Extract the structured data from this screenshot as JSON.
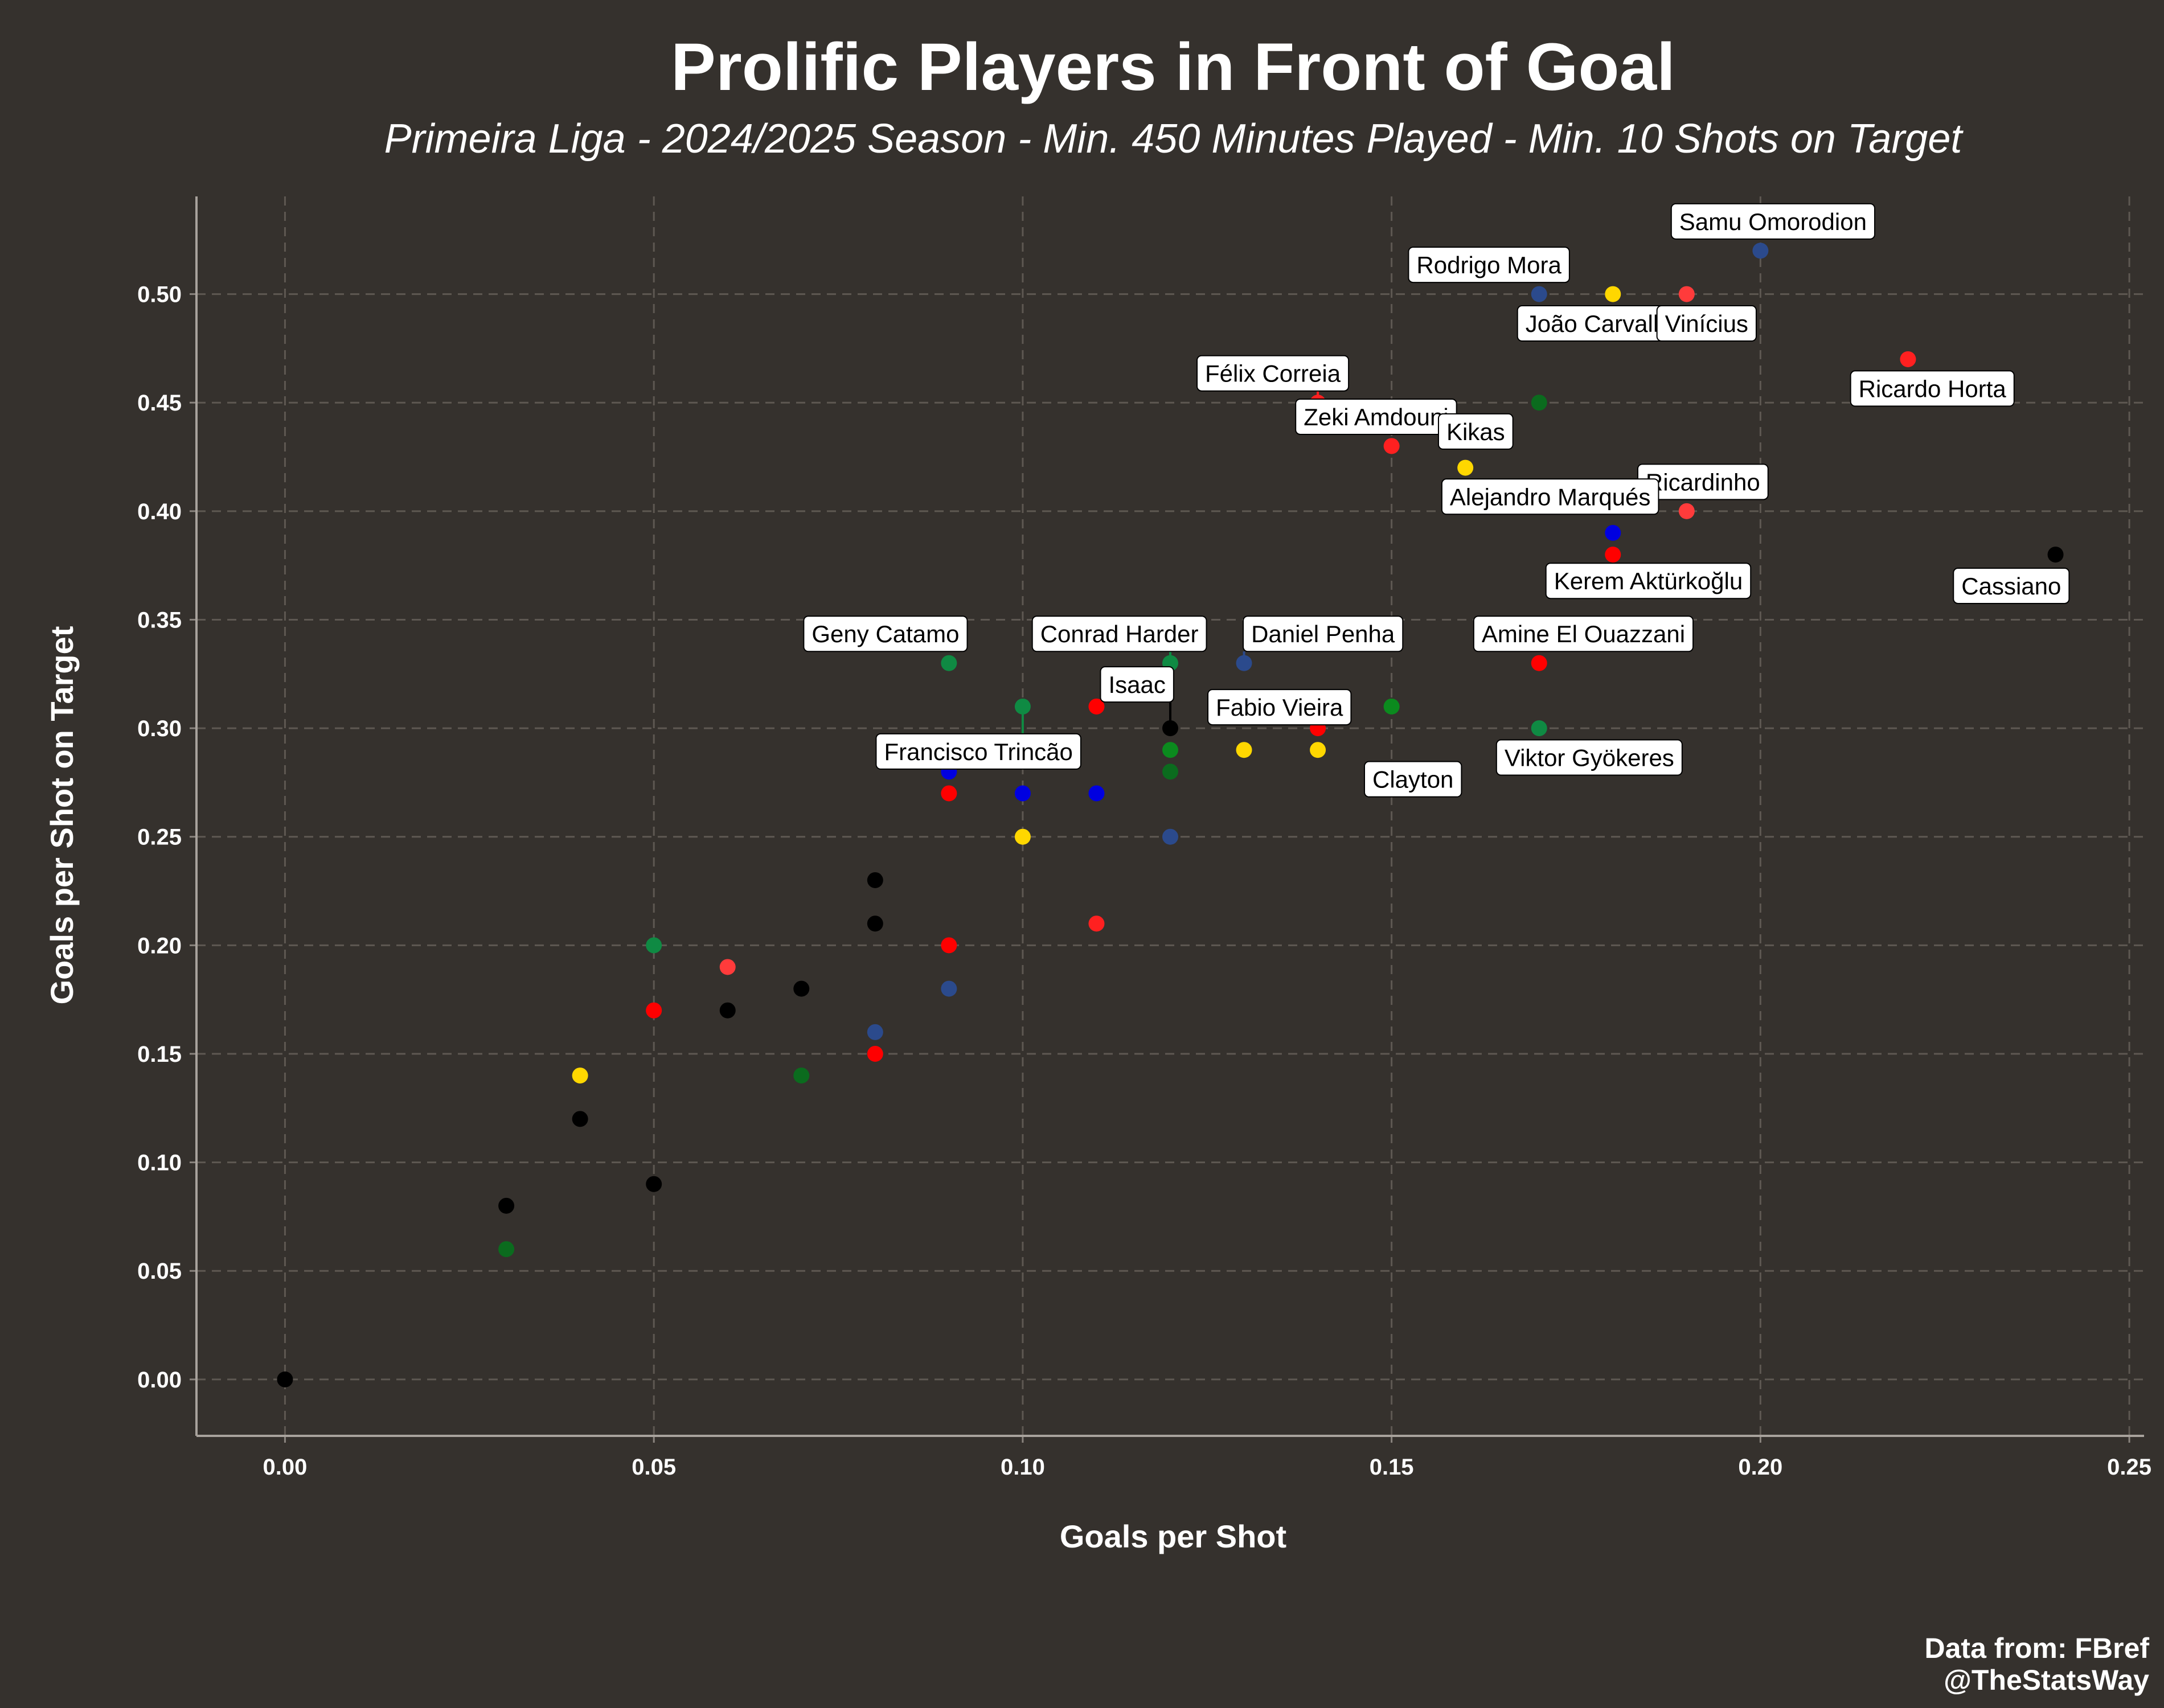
{
  "chart_data": {
    "type": "scatter",
    "title": "Prolific Players in Front of Goal",
    "subtitle": "Primeira Liga - 2024/2025 Season - Min. 450 Minutes Played - Min. 10 Shots on Target",
    "xlabel": "Goals per Shot",
    "ylabel": "Goals per Shot on Target",
    "xlim": [
      -0.012,
      0.252
    ],
    "ylim": [
      -0.026,
      0.545
    ],
    "xticks": [
      "0.00",
      "0.05",
      "0.10",
      "0.15",
      "0.20",
      "0.25"
    ],
    "yticks": [
      "0.00",
      "0.05",
      "0.10",
      "0.15",
      "0.20",
      "0.25",
      "0.30",
      "0.35",
      "0.40",
      "0.45",
      "0.50"
    ],
    "grid": true,
    "caption": [
      "Data from: FBref",
      "@TheStatsWay"
    ],
    "points": [
      {
        "x": 0.2,
        "y": 0.52,
        "color": "#2b4a8c",
        "label": "Samu Omorodion"
      },
      {
        "x": 0.17,
        "y": 0.5,
        "color": "#2b4a8c",
        "label": "Rodrigo Mora"
      },
      {
        "x": 0.18,
        "y": 0.5,
        "color": "#ffd700",
        "label": "João Carvalho"
      },
      {
        "x": 0.19,
        "y": 0.5,
        "color": "#ff3b3b",
        "label": "Vinícius"
      },
      {
        "x": 0.22,
        "y": 0.47,
        "color": "#ff2020",
        "label": "Ricardo Horta"
      },
      {
        "x": 0.14,
        "y": 0.45,
        "color": "#ff2020",
        "label": "Félix Correia"
      },
      {
        "x": 0.17,
        "y": 0.45,
        "color": "#0b6b1e",
        "label": ""
      },
      {
        "x": 0.15,
        "y": 0.43,
        "color": "#ff2020",
        "label": "Zeki Amdouni"
      },
      {
        "x": 0.16,
        "y": 0.42,
        "color": "#ffd700",
        "label": "Kikas"
      },
      {
        "x": 0.19,
        "y": 0.4,
        "color": "#ff3b3b",
        "label": "Ricardinho"
      },
      {
        "x": 0.18,
        "y": 0.39,
        "color": "#0000e0",
        "label": "Alejandro Marqués"
      },
      {
        "x": 0.18,
        "y": 0.38,
        "color": "#ff0000",
        "label": "Kerem Aktürkoğlu"
      },
      {
        "x": 0.24,
        "y": 0.38,
        "color": "#000000",
        "label": "Cassiano"
      },
      {
        "x": 0.09,
        "y": 0.33,
        "color": "#0f8a43",
        "label": "Geny Catamo"
      },
      {
        "x": 0.12,
        "y": 0.33,
        "color": "#0f8a43",
        "label": "Conrad Harder"
      },
      {
        "x": 0.13,
        "y": 0.33,
        "color": "#2b4a8c",
        "label": "Daniel Penha"
      },
      {
        "x": 0.17,
        "y": 0.33,
        "color": "#ff0000",
        "label": "Amine El Ouazzani"
      },
      {
        "x": 0.1,
        "y": 0.31,
        "color": "#0f8a43",
        "label": "Francisco Trincão"
      },
      {
        "x": 0.11,
        "y": 0.31,
        "color": "#ff0000",
        "label": ""
      },
      {
        "x": 0.14,
        "y": 0.31,
        "color": "#0b6b1e",
        "label": ""
      },
      {
        "x": 0.15,
        "y": 0.31,
        "color": "#0b8a1e",
        "label": ""
      },
      {
        "x": 0.12,
        "y": 0.3,
        "color": "#000000",
        "label": "Isaac"
      },
      {
        "x": 0.14,
        "y": 0.3,
        "color": "#ff0000",
        "label": "Fabio Vieira"
      },
      {
        "x": 0.17,
        "y": 0.3,
        "color": "#0f8a43",
        "label": "Viktor Gyökeres"
      },
      {
        "x": 0.12,
        "y": 0.29,
        "color": "#0b8a1e",
        "label": ""
      },
      {
        "x": 0.13,
        "y": 0.29,
        "color": "#ffd700",
        "label": ""
      },
      {
        "x": 0.14,
        "y": 0.29,
        "color": "#ffd700",
        "label": "Clayton"
      },
      {
        "x": 0.09,
        "y": 0.28,
        "color": "#0000e0",
        "label": ""
      },
      {
        "x": 0.12,
        "y": 0.28,
        "color": "#0b6b1e",
        "label": ""
      },
      {
        "x": 0.09,
        "y": 0.27,
        "color": "#ff0000",
        "label": ""
      },
      {
        "x": 0.1,
        "y": 0.27,
        "color": "#0000e0",
        "label": ""
      },
      {
        "x": 0.11,
        "y": 0.27,
        "color": "#0000e0",
        "label": ""
      },
      {
        "x": 0.1,
        "y": 0.25,
        "color": "#ffd700",
        "label": ""
      },
      {
        "x": 0.12,
        "y": 0.25,
        "color": "#2b4a8c",
        "label": ""
      },
      {
        "x": 0.08,
        "y": 0.23,
        "color": "#000000",
        "label": ""
      },
      {
        "x": 0.08,
        "y": 0.21,
        "color": "#000000",
        "label": ""
      },
      {
        "x": 0.11,
        "y": 0.21,
        "color": "#ff2020",
        "label": ""
      },
      {
        "x": 0.05,
        "y": 0.2,
        "color": "#0f8a43",
        "label": ""
      },
      {
        "x": 0.09,
        "y": 0.2,
        "color": "#ff0000",
        "label": ""
      },
      {
        "x": 0.06,
        "y": 0.19,
        "color": "#ff3b3b",
        "label": ""
      },
      {
        "x": 0.07,
        "y": 0.18,
        "color": "#000000",
        "label": ""
      },
      {
        "x": 0.09,
        "y": 0.18,
        "color": "#2b4a8c",
        "label": ""
      },
      {
        "x": 0.05,
        "y": 0.17,
        "color": "#ff0000",
        "label": ""
      },
      {
        "x": 0.06,
        "y": 0.17,
        "color": "#000000",
        "label": ""
      },
      {
        "x": 0.08,
        "y": 0.16,
        "color": "#2b4a8c",
        "label": ""
      },
      {
        "x": 0.08,
        "y": 0.15,
        "color": "#ff0000",
        "label": ""
      },
      {
        "x": 0.04,
        "y": 0.14,
        "color": "#ffd700",
        "label": ""
      },
      {
        "x": 0.07,
        "y": 0.14,
        "color": "#0b6b1e",
        "label": ""
      },
      {
        "x": 0.04,
        "y": 0.12,
        "color": "#000000",
        "label": ""
      },
      {
        "x": 0.05,
        "y": 0.09,
        "color": "#000000",
        "label": ""
      },
      {
        "x": 0.03,
        "y": 0.08,
        "color": "#000000",
        "label": ""
      },
      {
        "x": 0.03,
        "y": 0.06,
        "color": "#0b6b1e",
        "label": ""
      },
      {
        "x": 0.0,
        "y": 0.0,
        "color": "#000000",
        "label": ""
      }
    ]
  }
}
